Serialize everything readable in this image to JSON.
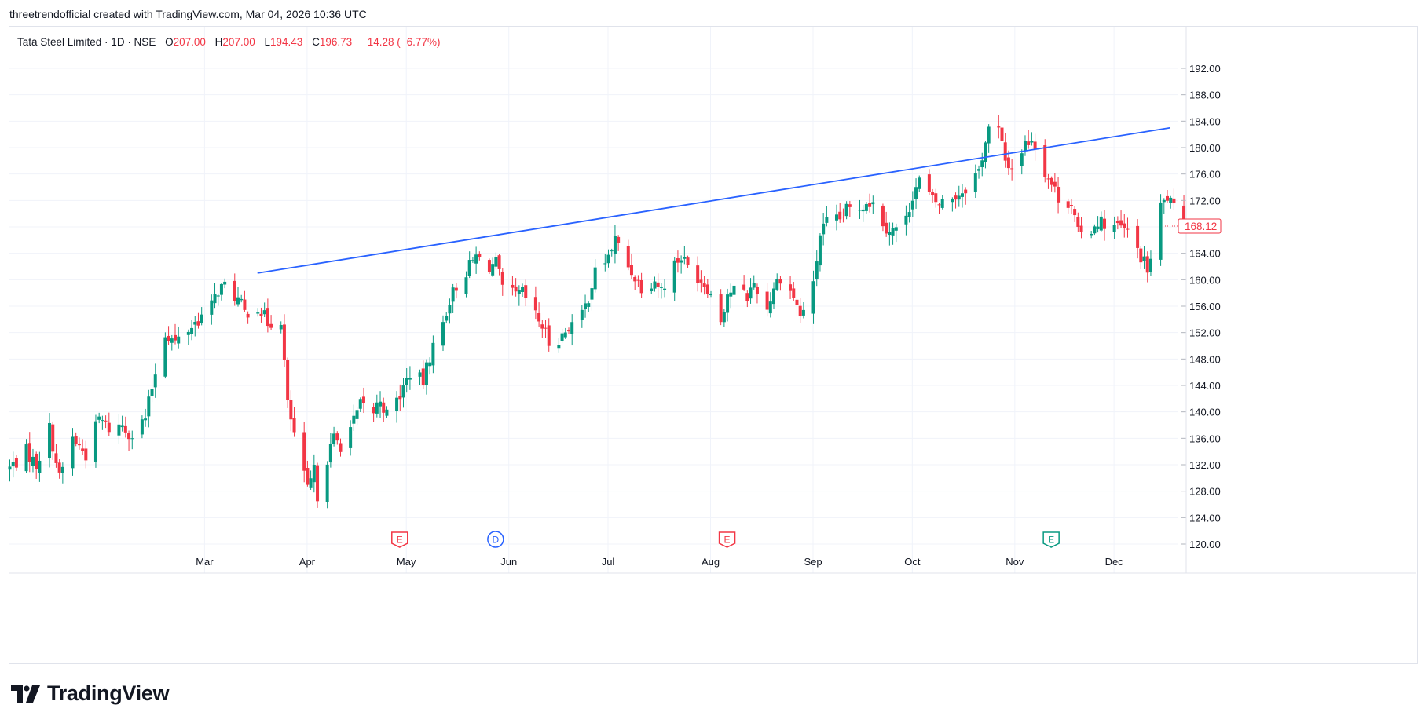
{
  "header": {
    "caption": "threetrendofficial created with TradingView.com, Mar 04, 2026 10:36 UTC"
  },
  "legend": {
    "symbol": "Tata Steel Limited · 1D · NSE",
    "o_label": "O",
    "o_value": "207.00",
    "h_label": "H",
    "h_value": "207.00",
    "l_label": "L",
    "l_value": "194.43",
    "c_label": "C",
    "c_value": "196.73",
    "change": "−14.28 (−6.77%)"
  },
  "price_tag": "168.12",
  "brand": {
    "name": "TradingView",
    "logo_icon": "tradingview-logo-icon"
  },
  "colors": {
    "up": "#089981",
    "down": "#f23645",
    "trendline": "#2962ff",
    "grid": "#f0f3fa",
    "axis_text": "#131722"
  },
  "chart_data": {
    "type": "candlestick",
    "symbol": "Tata Steel Limited",
    "interval": "1D",
    "exchange": "NSE",
    "ylim": [
      118,
      194
    ],
    "y_ticks": [
      "120.00",
      "124.00",
      "128.00",
      "132.00",
      "136.00",
      "140.00",
      "144.00",
      "148.00",
      "152.00",
      "156.00",
      "160.00",
      "164.00",
      "168.00",
      "172.00",
      "176.00",
      "180.00",
      "184.00",
      "188.00",
      "192.00"
    ],
    "x_ticks": [
      "Mar",
      "Apr",
      "May",
      "Jun",
      "Jul",
      "Aug",
      "Sep",
      "Oct",
      "Nov",
      "Dec"
    ],
    "grid": true,
    "last_price": 168.12,
    "trendline": {
      "from": {
        "date": "Mar 17",
        "price": 161.0
      },
      "to": {
        "date": "Dec 18",
        "price": 183.0
      }
    },
    "events": [
      {
        "date": "Apr 29",
        "label": "E",
        "kind": "earnings"
      },
      {
        "date": "May 28",
        "label": "D",
        "kind": "dividend"
      },
      {
        "date": "Aug 06",
        "label": "E",
        "kind": "earnings"
      },
      {
        "date": "Nov 12",
        "label": "E",
        "kind": "earnings"
      }
    ],
    "close_path": [
      [
        "Jan 01",
        131.5
      ],
      [
        "Jan 06",
        134.0
      ],
      [
        "Jan 09",
        132.0
      ],
      [
        "Jan 13",
        137.5
      ],
      [
        "Jan 16",
        130.0
      ],
      [
        "Jan 20",
        136.0
      ],
      [
        "Jan 24",
        133.5
      ],
      [
        "Jan 28",
        139.0
      ],
      [
        "Jan 31",
        137.5
      ],
      [
        "Feb 04",
        138.0
      ],
      [
        "Feb 07",
        136.5
      ],
      [
        "Feb 11",
        139.0
      ],
      [
        "Feb 14",
        146.0
      ],
      [
        "Feb 17",
        152.0
      ],
      [
        "Feb 20",
        150.5
      ],
      [
        "Feb 24",
        152.5
      ],
      [
        "Feb 27",
        154.0
      ],
      [
        "Mar 03",
        156.0
      ],
      [
        "Mar 05",
        158.5
      ],
      [
        "Mar 07",
        159.0
      ],
      [
        "Mar 11",
        157.0
      ],
      [
        "Mar 13",
        155.0
      ],
      [
        "Mar 17",
        156.0
      ],
      [
        "Mar 20",
        153.5
      ],
      [
        "Mar 24",
        154.0
      ],
      [
        "Mar 26",
        141.0
      ],
      [
        "Apr 01",
        128.0
      ],
      [
        "Apr 03",
        131.0
      ],
      [
        "Apr 04",
        127.5
      ],
      [
        "Apr 07",
        133.0
      ],
      [
        "Apr 09",
        136.0
      ],
      [
        "Apr 11",
        135.0
      ],
      [
        "Apr 15",
        138.5
      ],
      [
        "Apr 17",
        141.0
      ],
      [
        "Apr 21",
        140.0
      ],
      [
        "Apr 23",
        142.0
      ],
      [
        "Apr 25",
        139.5
      ],
      [
        "Apr 29",
        142.5
      ],
      [
        "May 02",
        146.0
      ],
      [
        "May 06",
        144.5
      ],
      [
        "May 08",
        148.5
      ],
      [
        "May 12",
        153.5
      ],
      [
        "May 14",
        157.0
      ],
      [
        "May 16",
        159.0
      ],
      [
        "May 20",
        162.0
      ],
      [
        "May 22",
        163.5
      ],
      [
        "May 26",
        162.0
      ],
      [
        "May 28",
        162.5
      ],
      [
        "May 30",
        158.5
      ],
      [
        "Jun 03",
        157.5
      ],
      [
        "Jun 05",
        158.0
      ],
      [
        "Jun 09",
        154.5
      ],
      [
        "Jun 11",
        153.0
      ],
      [
        "Jun 13",
        150.5
      ],
      [
        "Jun 17",
        151.5
      ],
      [
        "Jun 19",
        153.0
      ],
      [
        "Jun 23",
        154.5
      ],
      [
        "Jun 25",
        157.5
      ],
      [
        "Jun 27",
        161.0
      ],
      [
        "Jul 01",
        163.5
      ],
      [
        "Jul 03",
        166.0
      ],
      [
        "Jul 07",
        162.0
      ],
      [
        "Jul 09",
        160.5
      ],
      [
        "Jul 11",
        159.0
      ],
      [
        "Jul 15",
        160.0
      ],
      [
        "Jul 17",
        158.5
      ],
      [
        "Jul 21",
        162.5
      ],
      [
        "Jul 23",
        163.5
      ],
      [
        "Jul 25",
        162.0
      ],
      [
        "Jul 29",
        160.0
      ],
      [
        "Jul 31",
        159.0
      ],
      [
        "Aug 04",
        154.0
      ],
      [
        "Aug 06",
        158.0
      ],
      [
        "Aug 08",
        158.5
      ],
      [
        "Aug 12",
        157.5
      ],
      [
        "Aug 14",
        159.5
      ],
      [
        "Aug 18",
        155.5
      ],
      [
        "Aug 20",
        159.0
      ],
      [
        "Aug 22",
        160.5
      ],
      [
        "Aug 26",
        157.5
      ],
      [
        "Aug 28",
        154.5
      ],
      [
        "Sep 01",
        159.0
      ],
      [
        "Sep 03",
        167.0
      ],
      [
        "Sep 05",
        168.5
      ],
      [
        "Sep 09",
        169.0
      ],
      [
        "Sep 11",
        170.5
      ],
      [
        "Sep 15",
        171.0
      ],
      [
        "Sep 17",
        172.0
      ],
      [
        "Sep 19",
        171.5
      ],
      [
        "Sep 23",
        168.0
      ],
      [
        "Sep 25",
        167.5
      ],
      [
        "Sep 29",
        169.0
      ],
      [
        "Oct 01",
        173.0
      ],
      [
        "Oct 03",
        175.0
      ],
      [
        "Oct 07",
        172.0
      ],
      [
        "Oct 09",
        171.5
      ],
      [
        "Oct 13",
        172.5
      ],
      [
        "Oct 15",
        173.0
      ],
      [
        "Oct 17",
        174.0
      ],
      [
        "Oct 21",
        176.5
      ],
      [
        "Oct 23",
        181.0
      ],
      [
        "Oct 25",
        184.5
      ],
      [
        "Oct 27",
        182.5
      ],
      [
        "Oct 29",
        178.0
      ],
      [
        "Oct 31",
        177.0
      ],
      [
        "Nov 04",
        180.5
      ],
      [
        "Nov 06",
        181.5
      ],
      [
        "Nov 10",
        176.5
      ],
      [
        "Nov 12",
        174.5
      ],
      [
        "Nov 14",
        172.5
      ],
      [
        "Nov 18",
        171.5
      ],
      [
        "Nov 20",
        167.0
      ],
      [
        "Nov 22",
        166.5
      ],
      [
        "Nov 26",
        169.0
      ],
      [
        "Nov 28",
        168.5
      ],
      [
        "Dec 02",
        168.0
      ],
      [
        "Dec 04",
        167.5
      ],
      [
        "Dec 06",
        166.5
      ],
      [
        "Dec 09",
        163.5
      ],
      [
        "Dec 11",
        161.5
      ],
      [
        "Dec 13",
        164.5
      ],
      [
        "Dec 15",
        171.0
      ],
      [
        "Dec 17",
        172.5
      ],
      [
        "Dec 19",
        170.5
      ],
      [
        "Dec 22",
        168.12
      ]
    ]
  }
}
